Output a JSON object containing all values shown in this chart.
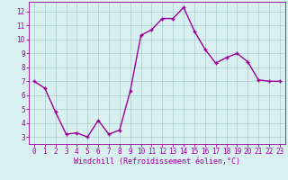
{
  "x": [
    0,
    1,
    2,
    3,
    4,
    5,
    6,
    7,
    8,
    9,
    10,
    11,
    12,
    13,
    14,
    15,
    16,
    17,
    18,
    19,
    20,
    21,
    22,
    23
  ],
  "y": [
    7.0,
    6.5,
    4.8,
    3.2,
    3.3,
    3.0,
    4.2,
    3.2,
    3.5,
    6.3,
    10.3,
    10.7,
    11.5,
    11.5,
    12.3,
    10.6,
    9.3,
    8.3,
    8.7,
    9.0,
    8.4,
    7.1,
    7.0,
    7.0
  ],
  "line_color": "#9b009b",
  "marker": "+",
  "marker_size": 3,
  "marker_lw": 1.0,
  "bg_color": "#d8f0f0",
  "grid_color": "#aacccc",
  "xlabel": "Windchill (Refroidissement éolien,°C)",
  "xlabel_color": "#9b009b",
  "tick_color": "#9b009b",
  "xlim": [
    -0.5,
    23.5
  ],
  "ylim": [
    2.5,
    12.7
  ],
  "yticks": [
    3,
    4,
    5,
    6,
    7,
    8,
    9,
    10,
    11,
    12
  ],
  "xticks": [
    0,
    1,
    2,
    3,
    4,
    5,
    6,
    7,
    8,
    9,
    10,
    11,
    12,
    13,
    14,
    15,
    16,
    17,
    18,
    19,
    20,
    21,
    22,
    23
  ],
  "line_width": 1.0,
  "border_color": "#9b009b",
  "tick_fontsize": 5.5,
  "xlabel_fontsize": 6.0
}
